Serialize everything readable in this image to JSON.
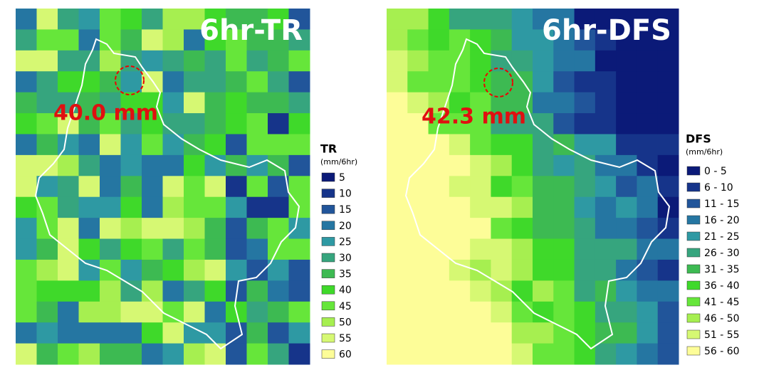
{
  "panels": [
    {
      "title": "6hr-TR",
      "annotation": "40.0 mm",
      "legend": {
        "title": "TR",
        "unit": "(mm/6hr)",
        "items": [
          {
            "label": "5",
            "color": "#0b1a78"
          },
          {
            "label": "10",
            "color": "#16348a"
          },
          {
            "label": "15",
            "color": "#21559a"
          },
          {
            "label": "20",
            "color": "#2576a2"
          },
          {
            "label": "25",
            "color": "#2e99a3"
          },
          {
            "label": "30",
            "color": "#36a57e"
          },
          {
            "label": "35",
            "color": "#3dba52"
          },
          {
            "label": "40",
            "color": "#3fd92a"
          },
          {
            "label": "45",
            "color": "#66e63a"
          },
          {
            "label": "50",
            "color": "#a6ef50"
          },
          {
            "label": "55",
            "color": "#d6f873"
          },
          {
            "label": "60",
            "color": "#fdfd98"
          }
        ]
      }
    },
    {
      "title": "6hr-DFS",
      "annotation": "42.3 mm",
      "legend": {
        "title": "DFS",
        "unit": "(mm/6hr)",
        "items": [
          {
            "label": "0 - 5",
            "color": "#0b1a78"
          },
          {
            "label": "6 - 10",
            "color": "#16348a"
          },
          {
            "label": "11 - 15",
            "color": "#21559a"
          },
          {
            "label": "16 - 20",
            "color": "#2576a2"
          },
          {
            "label": "21 - 25",
            "color": "#2e99a3"
          },
          {
            "label": "26 - 30",
            "color": "#36a57e"
          },
          {
            "label": "31 - 35",
            "color": "#3dba52"
          },
          {
            "label": "36 - 40",
            "color": "#3fd92a"
          },
          {
            "label": "41 - 45",
            "color": "#66e63a"
          },
          {
            "label": "46 - 50",
            "color": "#a6ef50"
          },
          {
            "label": "51 - 55",
            "color": "#d6f873"
          },
          {
            "label": "56 - 60",
            "color": "#fdfd98"
          }
        ]
      }
    }
  ]
}
